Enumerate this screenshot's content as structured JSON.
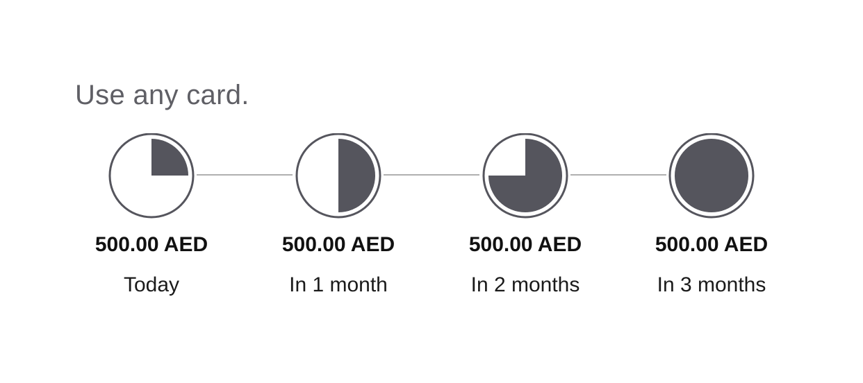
{
  "headline": "Use any card.",
  "colors": {
    "accent": "#55555d",
    "connector": "#b0b0b0",
    "text_primary": "#111111",
    "text_muted": "#5f5f65"
  },
  "installments": [
    {
      "amount": "500.00 AED",
      "when": "Today",
      "progress": 0.25,
      "icon": "quarter-pie-icon"
    },
    {
      "amount": "500.00 AED",
      "when": "In 1 month",
      "progress": 0.5,
      "icon": "half-pie-icon"
    },
    {
      "amount": "500.00 AED",
      "when": "In 2 months",
      "progress": 0.75,
      "icon": "three-quarter-pie-icon"
    },
    {
      "amount": "500.00 AED",
      "when": "In 3 months",
      "progress": 1.0,
      "icon": "full-pie-icon"
    }
  ]
}
